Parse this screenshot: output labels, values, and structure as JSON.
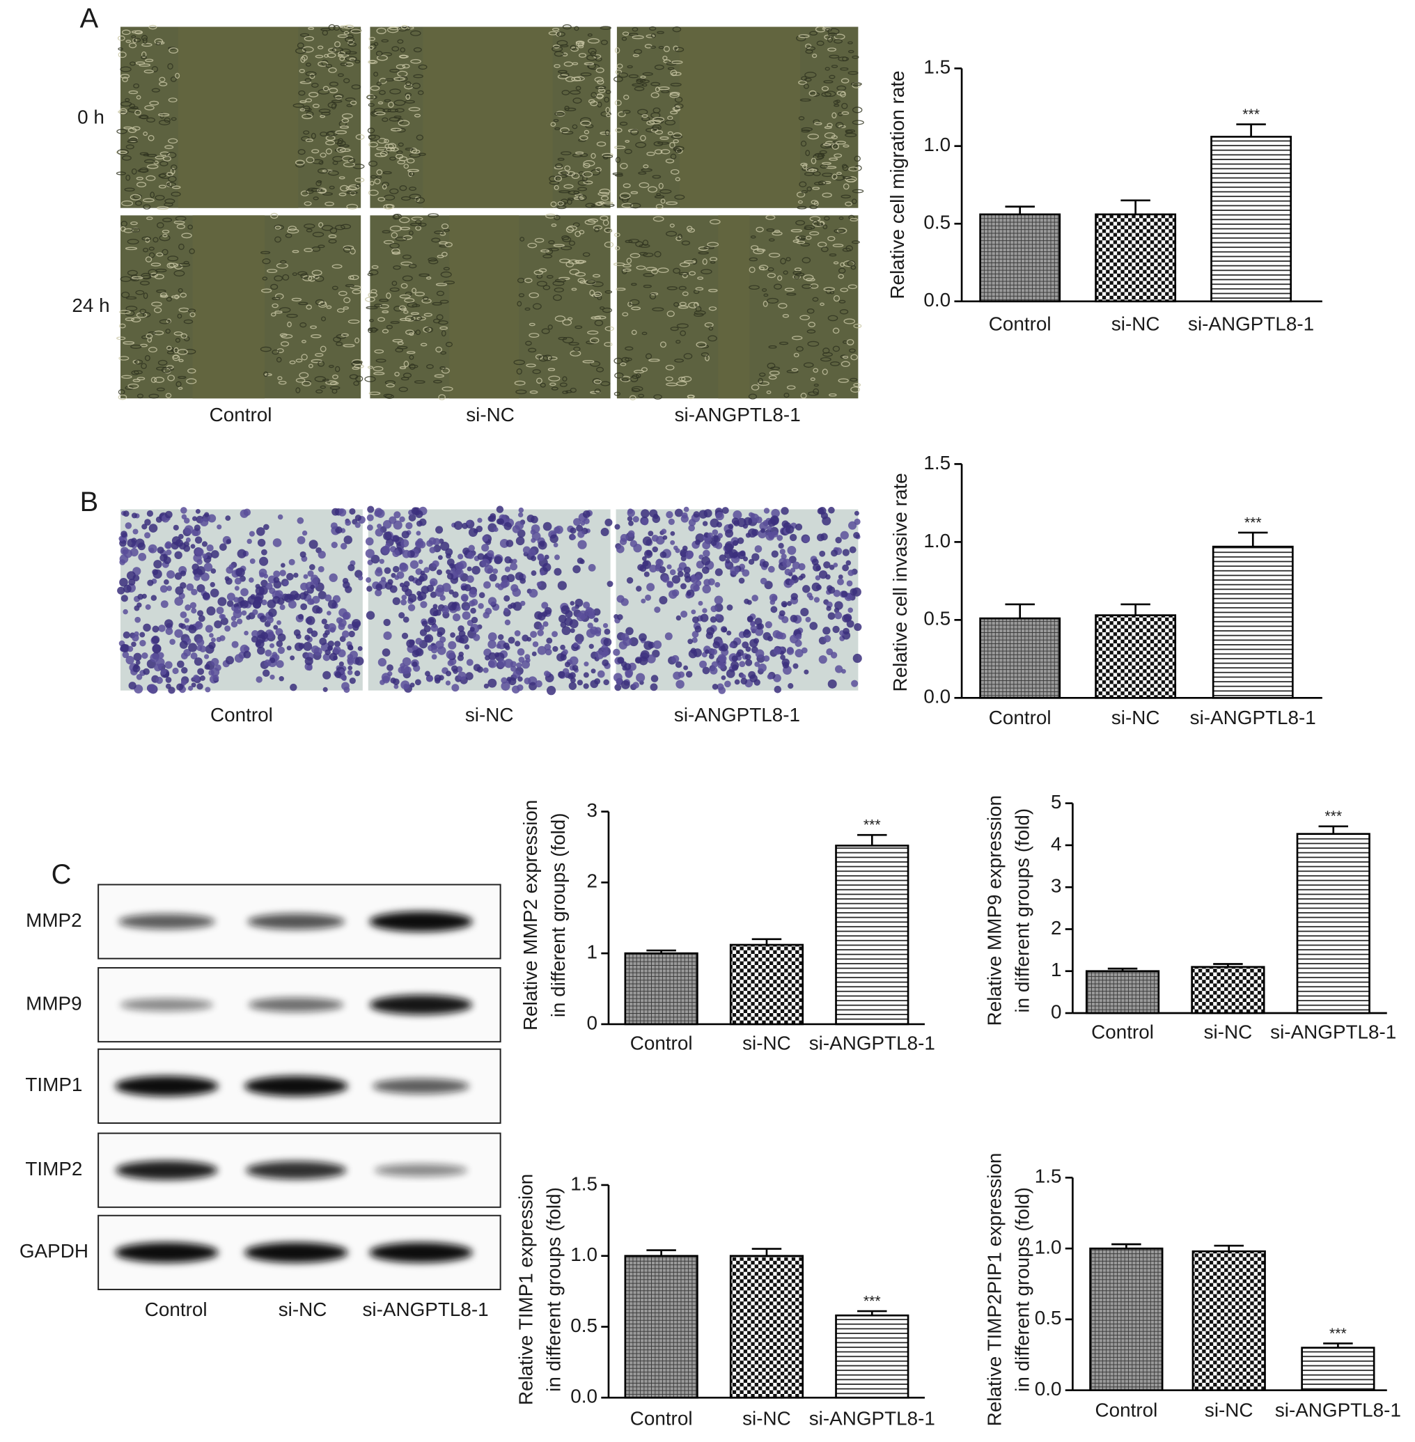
{
  "panel_labels": [
    "A",
    "B",
    "C"
  ],
  "wound_healing": {
    "time_labels": [
      "0 h",
      "24 h"
    ],
    "group_labels": [
      "Control",
      "si-NC",
      "si-ANGPTL8-1"
    ]
  },
  "transwell": {
    "group_labels": [
      "Control",
      "si-NC",
      "si-ANGPTL8-1"
    ]
  },
  "western_blot": {
    "proteins": [
      "MMP2",
      "MMP9",
      "TIMP1",
      "TIMP2",
      "GAPDH"
    ],
    "group_labels": [
      "Control",
      "si-NC",
      "si-ANGPTL8-1"
    ]
  },
  "chart_data": [
    {
      "type": "bar",
      "y_label": [
        "Relative cell migration rate"
      ],
      "categories": [
        "Control",
        "si-NC",
        "si-ANGPTL8-1"
      ],
      "values": [
        0.56,
        0.56,
        1.06
      ],
      "errors": [
        0.05,
        0.09,
        0.08
      ],
      "value_annotations": [
        null,
        null,
        "***"
      ],
      "patterns": [
        "crosshatch",
        "checker",
        "hlines"
      ],
      "color": "#000000",
      "ylim": [
        0,
        1.5
      ],
      "yticks": [
        {
          "value": 0,
          "label": "0.0"
        },
        0.5,
        {
          "value": 1,
          "label": "1.0"
        },
        1.5
      ]
    },
    {
      "type": "bar",
      "y_label": [
        "Relative cell invasive rate"
      ],
      "categories": [
        "Control",
        "si-NC",
        "si-ANGPTL8-1"
      ],
      "values": [
        0.51,
        0.53,
        0.97
      ],
      "errors": [
        0.09,
        0.07,
        0.09
      ],
      "value_annotations": [
        null,
        null,
        "***"
      ],
      "patterns": [
        "crosshatch",
        "checker",
        "hlines"
      ],
      "color": "#000000",
      "ylim": [
        0,
        1.5
      ],
      "yticks": [
        {
          "value": 0,
          "label": "0.0"
        },
        0.5,
        {
          "value": 1,
          "label": "1.0"
        },
        1.5
      ]
    },
    {
      "type": "bar",
      "y_label": [
        "Relative MMP2 expression",
        "in different groups (fold)"
      ],
      "categories": [
        "Control",
        "si-NC",
        "si-ANGPTL8-1"
      ],
      "values": [
        1.0,
        1.12,
        2.52
      ],
      "errors": [
        0.04,
        0.08,
        0.15
      ],
      "value_annotations": [
        null,
        null,
        "***"
      ],
      "patterns": [
        "crosshatch",
        "checker",
        "hlines"
      ],
      "color": "#000000",
      "ylim": [
        0,
        3
      ],
      "yticks": [
        0,
        1,
        2,
        3
      ]
    },
    {
      "type": "bar",
      "y_label": [
        "Relative MMP9 expression",
        "in different groups (fold)"
      ],
      "categories": [
        "Control",
        "si-NC",
        "si-ANGPTL8-1"
      ],
      "values": [
        1.0,
        1.1,
        4.27
      ],
      "errors": [
        0.06,
        0.07,
        0.18
      ],
      "value_annotations": [
        null,
        null,
        "***"
      ],
      "patterns": [
        "crosshatch",
        "checker",
        "hlines"
      ],
      "color": "#000000",
      "ylim": [
        0,
        5
      ],
      "yticks": [
        0,
        1,
        2,
        3,
        4,
        5
      ]
    },
    {
      "type": "bar",
      "y_label": [
        "Relative TIMP1 expression",
        "in different groups (fold)"
      ],
      "categories": [
        "Control",
        "si-NC",
        "si-ANGPTL8-1"
      ],
      "values": [
        1.0,
        1.0,
        0.58
      ],
      "errors": [
        0.04,
        0.05,
        0.03
      ],
      "value_annotations": [
        null,
        null,
        "***"
      ],
      "patterns": [
        "crosshatch",
        "checker",
        "hlines"
      ],
      "color": "#000000",
      "ylim": [
        0,
        1.5
      ],
      "yticks": [
        {
          "value": 0,
          "label": "0.0"
        },
        0.5,
        {
          "value": 1,
          "label": "1.0"
        },
        1.5
      ]
    },
    {
      "type": "bar",
      "y_label": [
        "Relative TIMP2PIP1 expression",
        "in different groups (fold)"
      ],
      "categories": [
        "Control",
        "si-NC",
        "si-ANGPTL8-1"
      ],
      "values": [
        1.0,
        0.98,
        0.3
      ],
      "errors": [
        0.03,
        0.04,
        0.03
      ],
      "value_annotations": [
        null,
        null,
        "***"
      ],
      "patterns": [
        "crosshatch",
        "checker",
        "hlines"
      ],
      "color": "#000000",
      "ylim": [
        0,
        1.5
      ],
      "yticks": [
        {
          "value": 0,
          "label": "0.0"
        },
        0.5,
        {
          "value": 1,
          "label": "1.0"
        },
        1.5
      ]
    }
  ]
}
